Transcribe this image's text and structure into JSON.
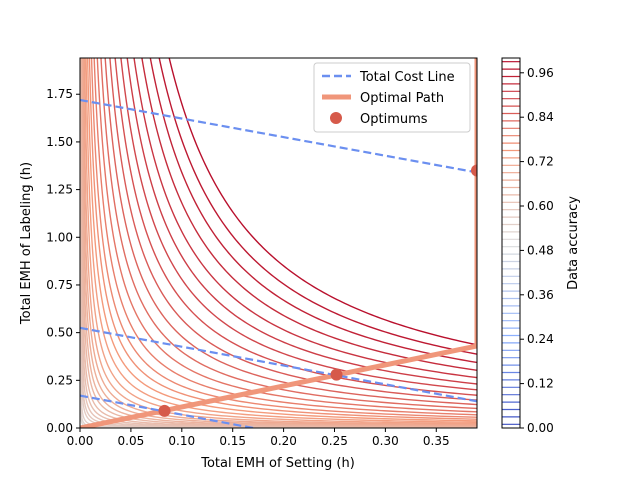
{
  "chart_data": {
    "type": "contour",
    "xlabel": "Total EMH of Setting (h)",
    "ylabel": "Total EMH of Labeling (h)",
    "xlim": [
      0,
      0.39
    ],
    "ylim": [
      0,
      1.94
    ],
    "x_ticks": [
      0,
      0.05,
      0.1,
      0.15,
      0.2,
      0.25,
      0.3,
      0.35
    ],
    "x_tick_labels": [
      "0.00",
      "0.05",
      "0.10",
      "0.15",
      "0.20",
      "0.25",
      "0.30",
      "0.35"
    ],
    "y_ticks": [
      0,
      0.25,
      0.5,
      0.75,
      1.0,
      1.25,
      1.5,
      1.75
    ],
    "y_tick_labels": [
      "0.00",
      "0.25",
      "0.50",
      "0.75",
      "1.00",
      "1.25",
      "1.50",
      "1.75"
    ],
    "contour_constants": [
      5e-05,
      0.0001,
      0.0002,
      0.0004,
      0.0006,
      0.0009,
      0.0013,
      0.0018,
      0.0025,
      0.0033,
      0.0043,
      0.0055,
      0.007,
      0.009,
      0.0115,
      0.0145,
      0.018,
      0.022,
      0.027,
      0.033,
      0.04,
      0.048,
      0.057,
      0.067,
      0.078,
      0.09,
      0.103,
      0.118,
      0.134,
      0.151,
      0.17
    ],
    "series": [
      {
        "name": "Total Cost Line",
        "style": "dashed",
        "color": "#6b8ff0",
        "lines": [
          {
            "x": [
              0,
              0.39
            ],
            "y": [
              1.72,
              1.34
            ]
          },
          {
            "x": [
              0,
              0.39
            ],
            "y": [
              0.525,
              0.14
            ]
          },
          {
            "x": [
              0,
              0.17
            ],
            "y": [
              0.17,
              0
            ]
          }
        ]
      },
      {
        "name": "Optimal Path",
        "style": "solid",
        "color": "#f0967a",
        "x": [
          0,
          0.39,
          0.39
        ],
        "y": [
          0,
          0.43,
          1.94
        ]
      },
      {
        "name": "Optimums",
        "style": "marker",
        "color": "#d65a4a",
        "x": [
          0.083,
          0.252,
          0.39
        ],
        "y": [
          0.09,
          0.28,
          1.35
        ]
      }
    ],
    "legend": {
      "position": "top-right",
      "entries": [
        "Total Cost Line",
        "Optimal Path",
        "Optimums"
      ]
    },
    "colorbar": {
      "label": "Data accuracy",
      "range": [
        0,
        1
      ],
      "tick_values": [
        0,
        0.12,
        0.24,
        0.36,
        0.48,
        0.6,
        0.72,
        0.84,
        0.96
      ],
      "tick_labels": [
        "0.00",
        "0.12",
        "0.24",
        "0.36",
        "0.48",
        "0.60",
        "0.72",
        "0.84",
        "0.96"
      ],
      "colormap": "coolwarm"
    }
  }
}
